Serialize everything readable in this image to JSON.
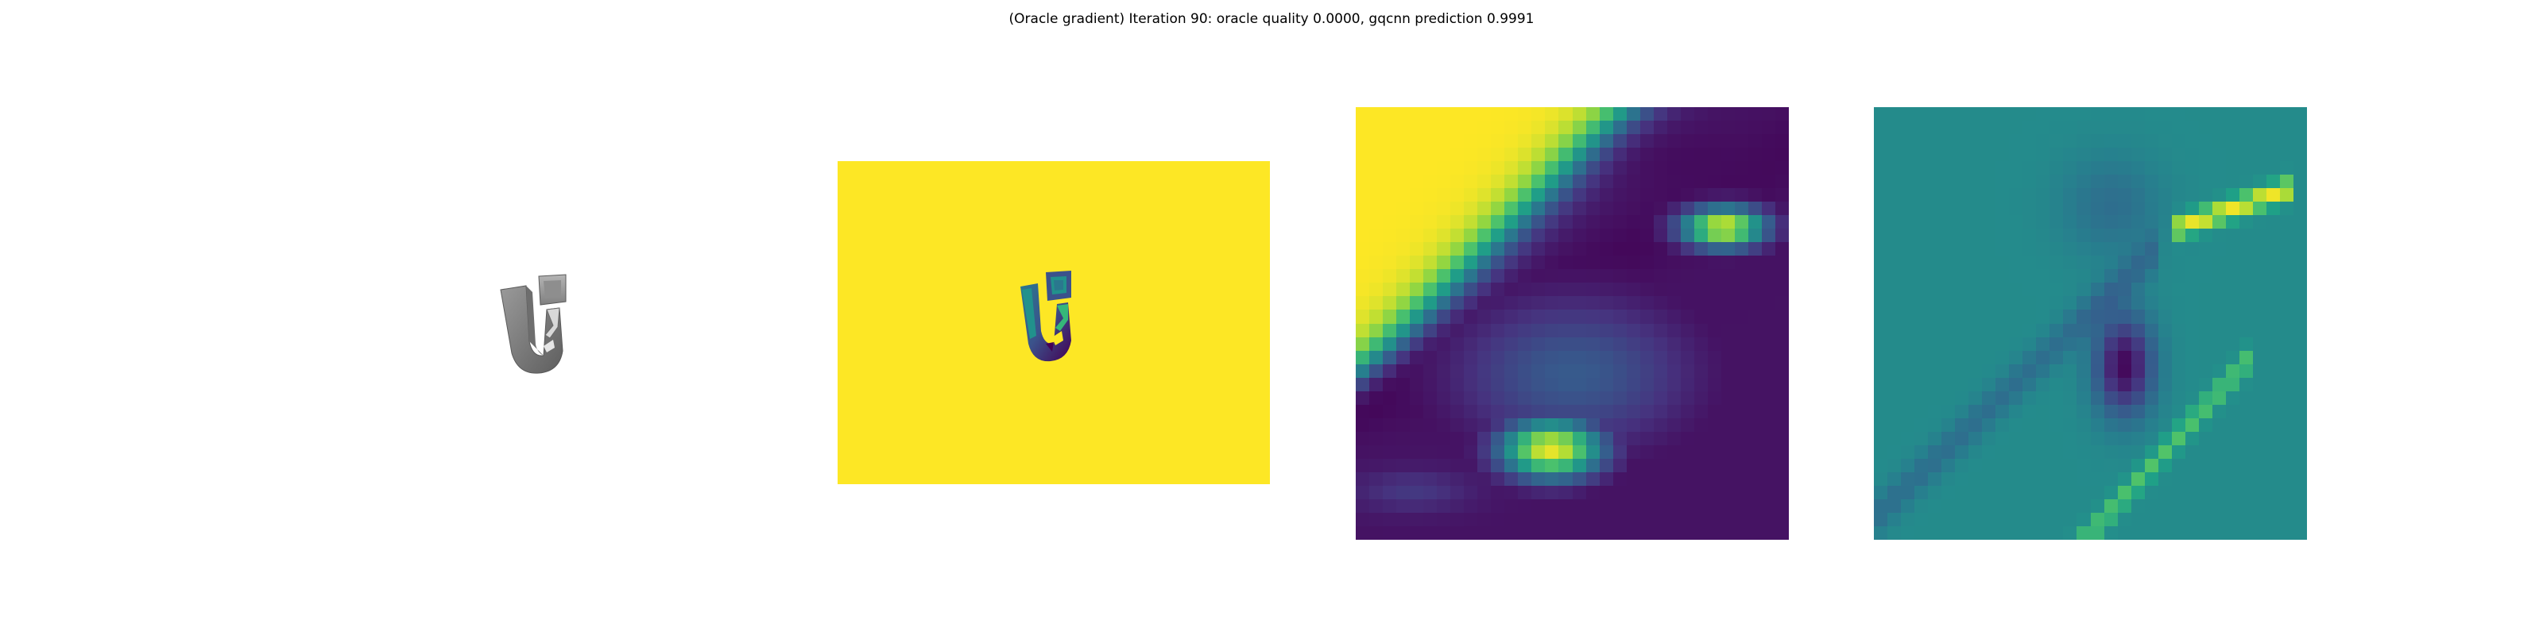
{
  "figure": {
    "title": "(Oracle gradient) Iteration 90: oracle quality 0.0000, gqcnn prediction 0.9991"
  },
  "panels": [
    {
      "content": "rendered grey object, white background"
    },
    {
      "content": "depth image, viridis colormap, yellow background"
    },
    {
      "content": "cropped depth patch, viridis colormap"
    },
    {
      "content": "gradient patch, viridis colormap"
    }
  ],
  "colors": {
    "background": "#ffffff",
    "viridis": [
      "#440154",
      "#46337f",
      "#365c8d",
      "#277f8e",
      "#1fa187",
      "#4ac16d",
      "#9fda3a",
      "#fde725"
    ]
  }
}
